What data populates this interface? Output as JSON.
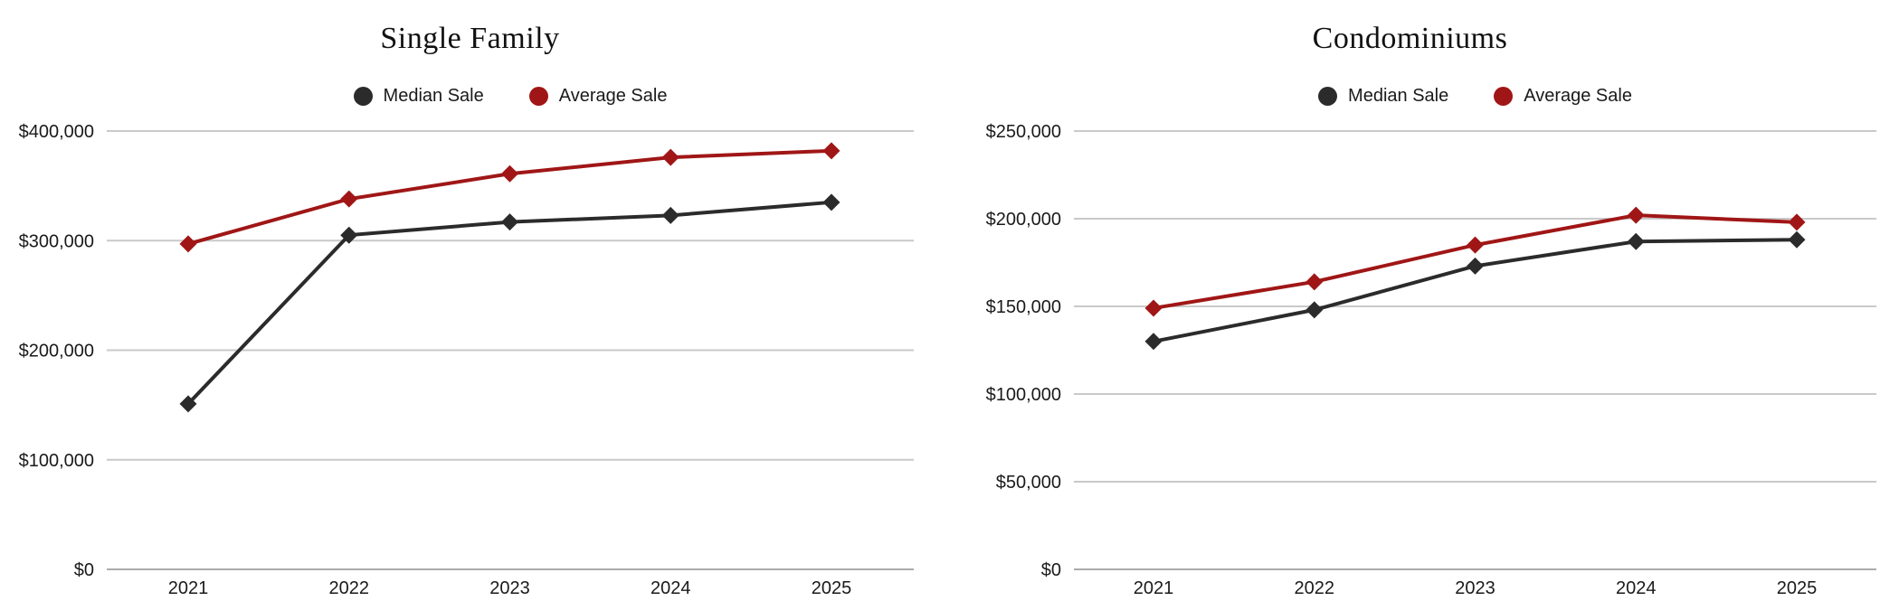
{
  "chart_data": [
    {
      "type": "line",
      "title": "Single Family",
      "categories": [
        "2021",
        "2022",
        "2023",
        "2024",
        "2025"
      ],
      "series": [
        {
          "name": "Median Sale",
          "color": "#2b2b2b",
          "values": [
            151000,
            305000,
            317000,
            323000,
            335000
          ]
        },
        {
          "name": "Average Sale",
          "color": "#a01616",
          "values": [
            297000,
            338000,
            361000,
            376000,
            382000
          ]
        }
      ],
      "xlabel": "",
      "ylabel": "",
      "ylim": [
        0,
        400000
      ],
      "ytick_step": 100000,
      "ytick_labels": [
        "$0",
        "$100,000",
        "$200,000",
        "$300,000",
        "$400,000"
      ],
      "grid": true,
      "legend_position": "top",
      "marker": "diamond"
    },
    {
      "type": "line",
      "title": "Condominiums",
      "categories": [
        "2021",
        "2022",
        "2023",
        "2024",
        "2025"
      ],
      "series": [
        {
          "name": "Median Sale",
          "color": "#2b2b2b",
          "values": [
            130000,
            148000,
            173000,
            187000,
            188000
          ]
        },
        {
          "name": "Average Sale",
          "color": "#a01616",
          "values": [
            149000,
            164000,
            185000,
            202000,
            198000
          ]
        }
      ],
      "xlabel": "",
      "ylabel": "",
      "ylim": [
        0,
        250000
      ],
      "ytick_step": 50000,
      "ytick_labels": [
        "$0",
        "$50,000",
        "$100,000",
        "$150,000",
        "$200,000",
        "$250,000"
      ],
      "grid": true,
      "legend_position": "top",
      "marker": "diamond"
    }
  ],
  "colors": {
    "median": "#2b2b2b",
    "average": "#a01616",
    "gridline": "#c9c9c9",
    "axis_line": "#ababab",
    "text": "#1a1a1a"
  }
}
